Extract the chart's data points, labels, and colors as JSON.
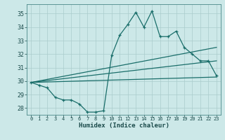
{
  "xlabel": "Humidex (Indice chaleur)",
  "ylabel": "",
  "bg_color": "#cce8e8",
  "grid_color": "#aacccc",
  "line_color": "#1a6e6a",
  "xlim": [
    -0.5,
    23.5
  ],
  "ylim": [
    27.5,
    35.7
  ],
  "yticks": [
    28,
    29,
    30,
    31,
    32,
    33,
    34,
    35
  ],
  "xticks": [
    0,
    1,
    2,
    3,
    4,
    5,
    6,
    7,
    8,
    9,
    10,
    11,
    12,
    13,
    14,
    15,
    16,
    17,
    18,
    19,
    20,
    21,
    22,
    23
  ],
  "line1_x": [
    0,
    1,
    2,
    3,
    4,
    5,
    6,
    7,
    8,
    9,
    10,
    11,
    12,
    13,
    14,
    15,
    16,
    17,
    18,
    19,
    20,
    21,
    22,
    23
  ],
  "line1_y": [
    29.9,
    29.7,
    29.5,
    28.8,
    28.6,
    28.6,
    28.3,
    27.7,
    27.7,
    27.8,
    31.9,
    33.4,
    34.2,
    35.1,
    34.0,
    35.2,
    33.3,
    33.3,
    33.7,
    32.5,
    32.0,
    31.5,
    31.5,
    30.4
  ],
  "line2_x": [
    0,
    23
  ],
  "line2_y": [
    29.9,
    32.5
  ],
  "line3_x": [
    0,
    23
  ],
  "line3_y": [
    29.9,
    31.5
  ],
  "line4_x": [
    0,
    23
  ],
  "line4_y": [
    29.9,
    30.3
  ]
}
